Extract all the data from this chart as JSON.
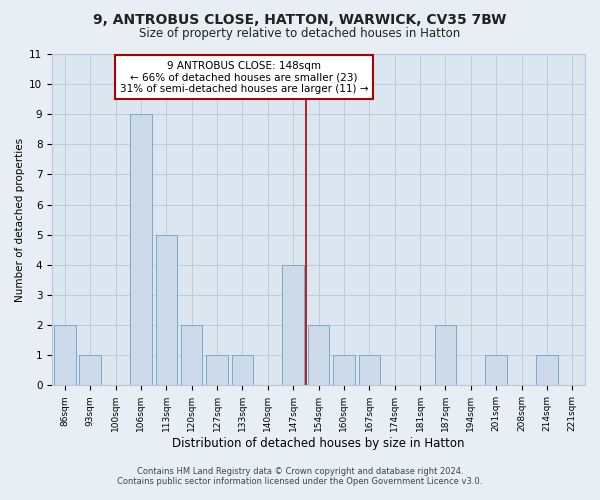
{
  "title": "9, ANTROBUS CLOSE, HATTON, WARWICK, CV35 7BW",
  "subtitle": "Size of property relative to detached houses in Hatton",
  "xlabel": "Distribution of detached houses by size in Hatton",
  "ylabel": "Number of detached properties",
  "footnote1": "Contains HM Land Registry data © Crown copyright and database right 2024.",
  "footnote2": "Contains public sector information licensed under the Open Government Licence v3.0.",
  "bin_labels": [
    "86sqm",
    "93sqm",
    "100sqm",
    "106sqm",
    "113sqm",
    "120sqm",
    "127sqm",
    "133sqm",
    "140sqm",
    "147sqm",
    "154sqm",
    "160sqm",
    "167sqm",
    "174sqm",
    "181sqm",
    "187sqm",
    "194sqm",
    "201sqm",
    "208sqm",
    "214sqm",
    "221sqm"
  ],
  "bar_values": [
    2,
    1,
    0,
    9,
    5,
    2,
    1,
    1,
    0,
    4,
    2,
    1,
    1,
    0,
    0,
    2,
    0,
    1,
    0,
    1,
    0
  ],
  "bar_color": "#ccdaea",
  "bar_edge_color": "#7aaac8",
  "property_line_color": "#aa0000",
  "annotation_title": "9 ANTROBUS CLOSE: 148sqm",
  "annotation_line1": "← 66% of detached houses are smaller (23)",
  "annotation_line2": "31% of semi-detached houses are larger (11) →",
  "ylim": [
    0,
    11
  ],
  "yticks": [
    0,
    1,
    2,
    3,
    4,
    5,
    6,
    7,
    8,
    9,
    10,
    11
  ],
  "background_color": "#e8eef4",
  "plot_bg_color": "#dce6f0",
  "grid_color": "#b8c8d8"
}
